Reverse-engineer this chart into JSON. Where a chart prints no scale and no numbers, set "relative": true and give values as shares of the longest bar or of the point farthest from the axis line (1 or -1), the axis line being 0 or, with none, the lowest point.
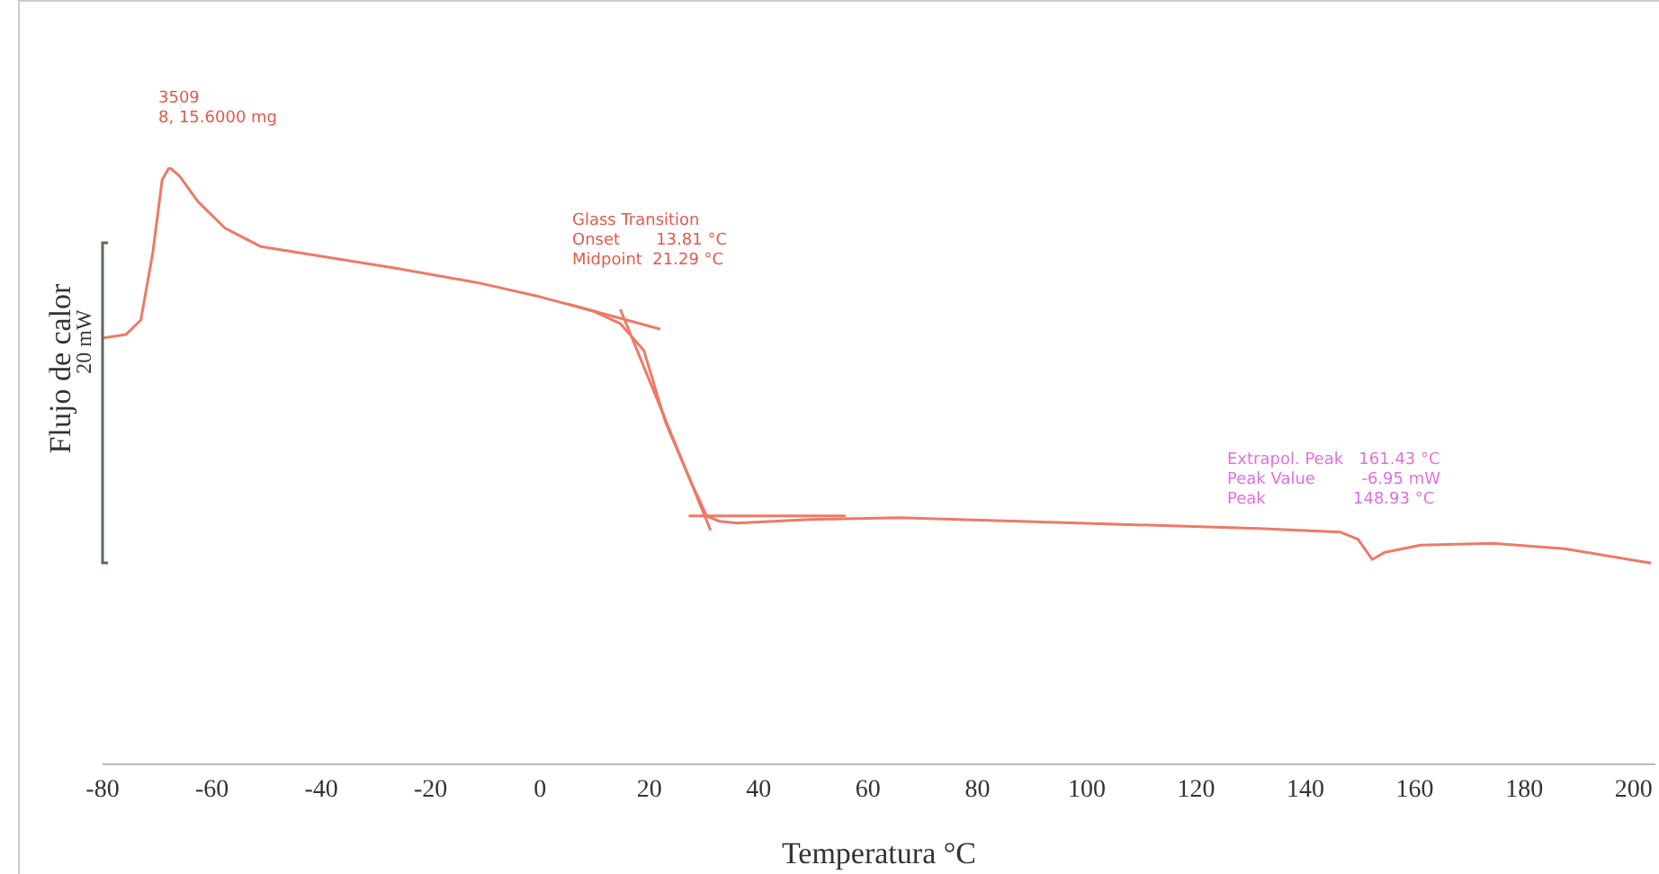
{
  "chart_data": {
    "type": "line",
    "relative": true,
    "xlabel": "Temperatura °C",
    "ylabel": "Flujo de calor",
    "xlim": [
      -80,
      204
    ],
    "xticks": [
      -80,
      -60,
      -40,
      -20,
      0,
      20,
      40,
      60,
      80,
      100,
      120,
      140,
      160,
      180,
      200
    ],
    "annotations": [
      "3509\n8, 15.6000 mg",
      "Glass Transition\nOnset       13.81 °C\nMidpoint  21.29 °C",
      "Extrapol. Peak   161.43 °C\nPeak Value         -6.95 mW\nPeak                 148.93 °C",
      "20 mW"
    ],
    "marker": "none",
    "line_style": "solid",
    "series": [
      {
        "color": "#ec7a68",
        "x": [
          -80,
          -75.7,
          -73,
          -70.8,
          -69.1,
          -67.8,
          -65.9,
          -62.6,
          -57.6,
          -51,
          -42.8,
          -26.4,
          -11.6,
          0,
          9.8,
          14.7,
          19,
          23,
          27.9,
          30.5,
          32.8,
          36.1,
          49.3,
          65.7,
          98.6,
          131.5,
          146.3,
          149.6,
          152.2,
          154.5,
          161.1,
          174.3,
          187.4,
          203.2
        ],
        "values": [
          0.714,
          0.72,
          0.744,
          0.858,
          0.979,
          1,
          0.985,
          0.943,
          0.898,
          0.867,
          0.855,
          0.831,
          0.807,
          0.783,
          0.759,
          0.738,
          0.693,
          0.572,
          0.467,
          0.416,
          0.407,
          0.404,
          0.41,
          0.413,
          0.404,
          0.395,
          0.389,
          0.377,
          0.343,
          0.355,
          0.367,
          0.37,
          0.361,
          0.337
        ]
      },
      {
        "type": "line",
        "color": "#ec7a68",
        "x": [
          5,
          22
        ],
        "values": [
          0.771,
          0.729
        ]
      },
      {
        "type": "line",
        "color": "#ec7a68",
        "x": [
          14.7,
          31.2
        ],
        "values": [
          0.762,
          0.392
        ]
      },
      {
        "type": "line",
        "color": "#ec7a68",
        "x": [
          27.2,
          55.9
        ],
        "values": [
          0.416,
          0.416
        ]
      }
    ]
  }
}
